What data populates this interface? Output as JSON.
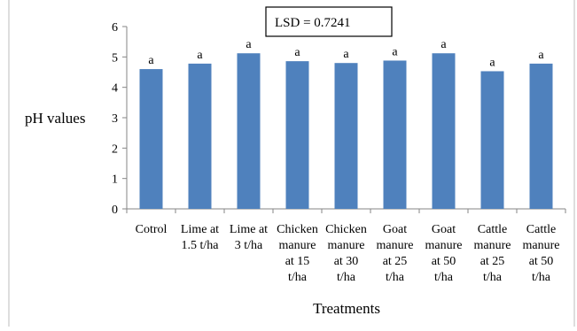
{
  "chart_data": {
    "type": "bar",
    "categories": [
      [
        "Cotrol"
      ],
      [
        "Lime at",
        "1.5 t/ha"
      ],
      [
        "Lime at",
        "3 t/ha"
      ],
      [
        "Chicken",
        "manure",
        "at 15",
        "t/ha"
      ],
      [
        "Chicken",
        "manure",
        "at 30",
        "t/ha"
      ],
      [
        "Goat",
        "manure",
        "at 25",
        "t/ha"
      ],
      [
        "Goat",
        "manure",
        "at 50",
        "t/ha"
      ],
      [
        "Cattle",
        "manure",
        "at 25",
        "t/ha"
      ],
      [
        "Cattle",
        "manure",
        "at 50",
        "t/ha"
      ]
    ],
    "values": [
      4.6,
      4.78,
      5.12,
      4.86,
      4.8,
      4.88,
      5.12,
      4.53,
      4.78
    ],
    "data_labels": [
      "a",
      "a",
      "a",
      "a",
      "a",
      "a",
      "a",
      "a",
      "a"
    ],
    "xlabel": "Treatments",
    "ylabel": "pH values",
    "ylim": [
      0,
      6
    ],
    "yticks": [
      "0",
      "1",
      "2",
      "3",
      "4",
      "5",
      "6"
    ],
    "annotation": "LSD = 0.7241",
    "grid": false,
    "bar_color": "#4f81bd",
    "axis_color": "#868686"
  }
}
